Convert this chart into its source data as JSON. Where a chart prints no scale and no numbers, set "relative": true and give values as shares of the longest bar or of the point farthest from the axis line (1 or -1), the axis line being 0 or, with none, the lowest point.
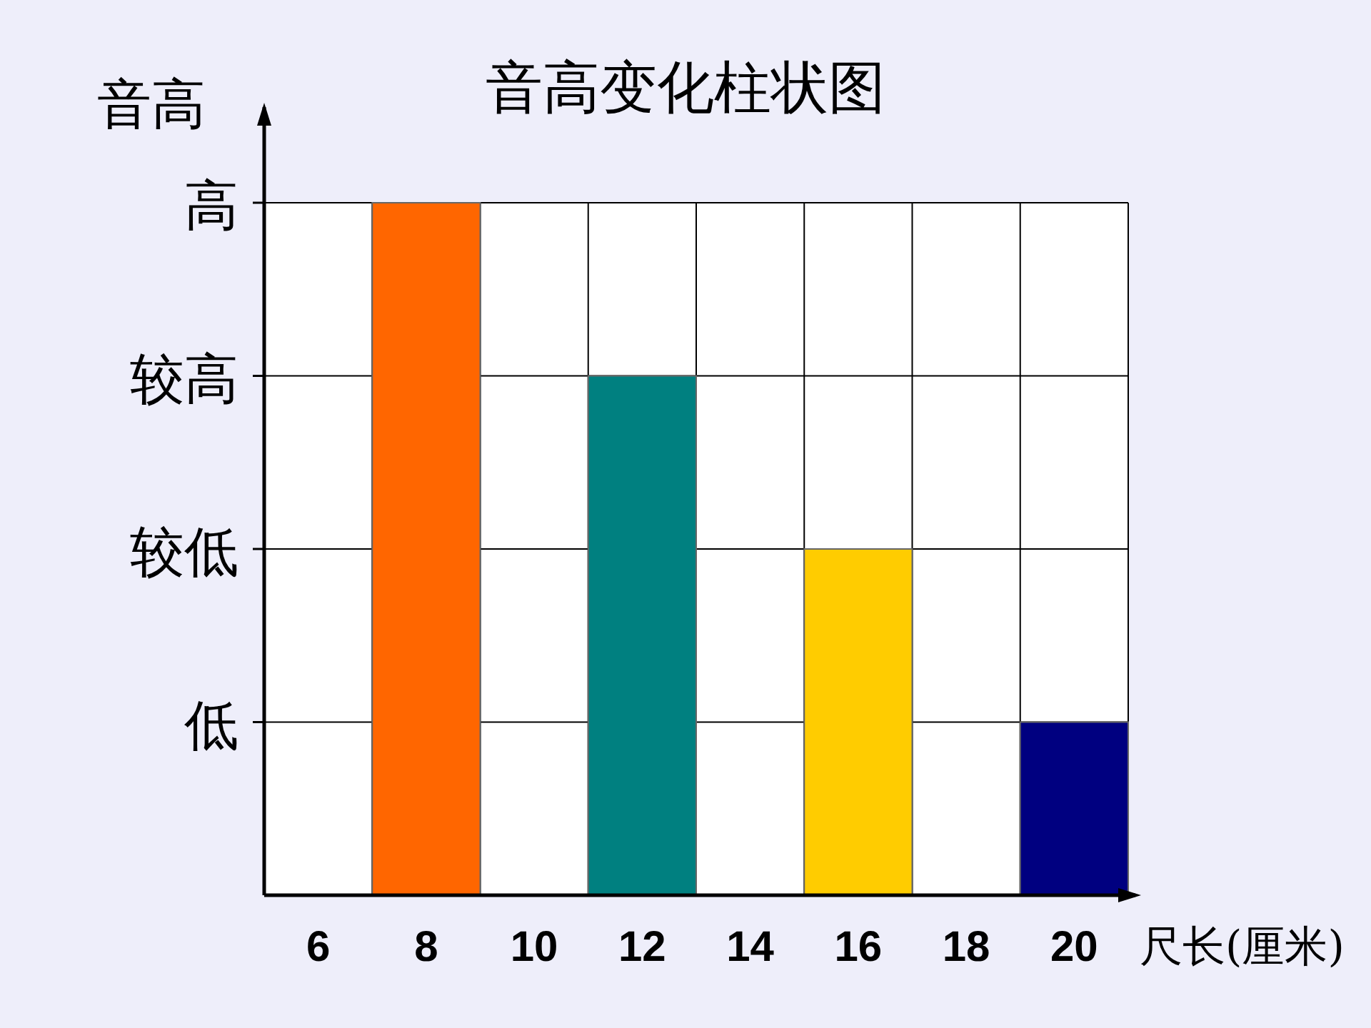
{
  "chart_data": {
    "type": "bar",
    "title": "音高变化柱状图",
    "xlabel": "尺长(厘米)",
    "ylabel": "音高",
    "categories": [
      "6",
      "8",
      "10",
      "12",
      "14",
      "16",
      "18",
      "20"
    ],
    "values": [
      null,
      1,
      null,
      0.75,
      null,
      0.5,
      null,
      0.25
    ],
    "colors": [
      null,
      "#ff6600",
      null,
      "#008080",
      null,
      "#ffcc00",
      null,
      "#000080"
    ],
    "relative": true,
    "annotations": [
      "低",
      "较低",
      "较高",
      "高"
    ],
    "grid": true
  }
}
